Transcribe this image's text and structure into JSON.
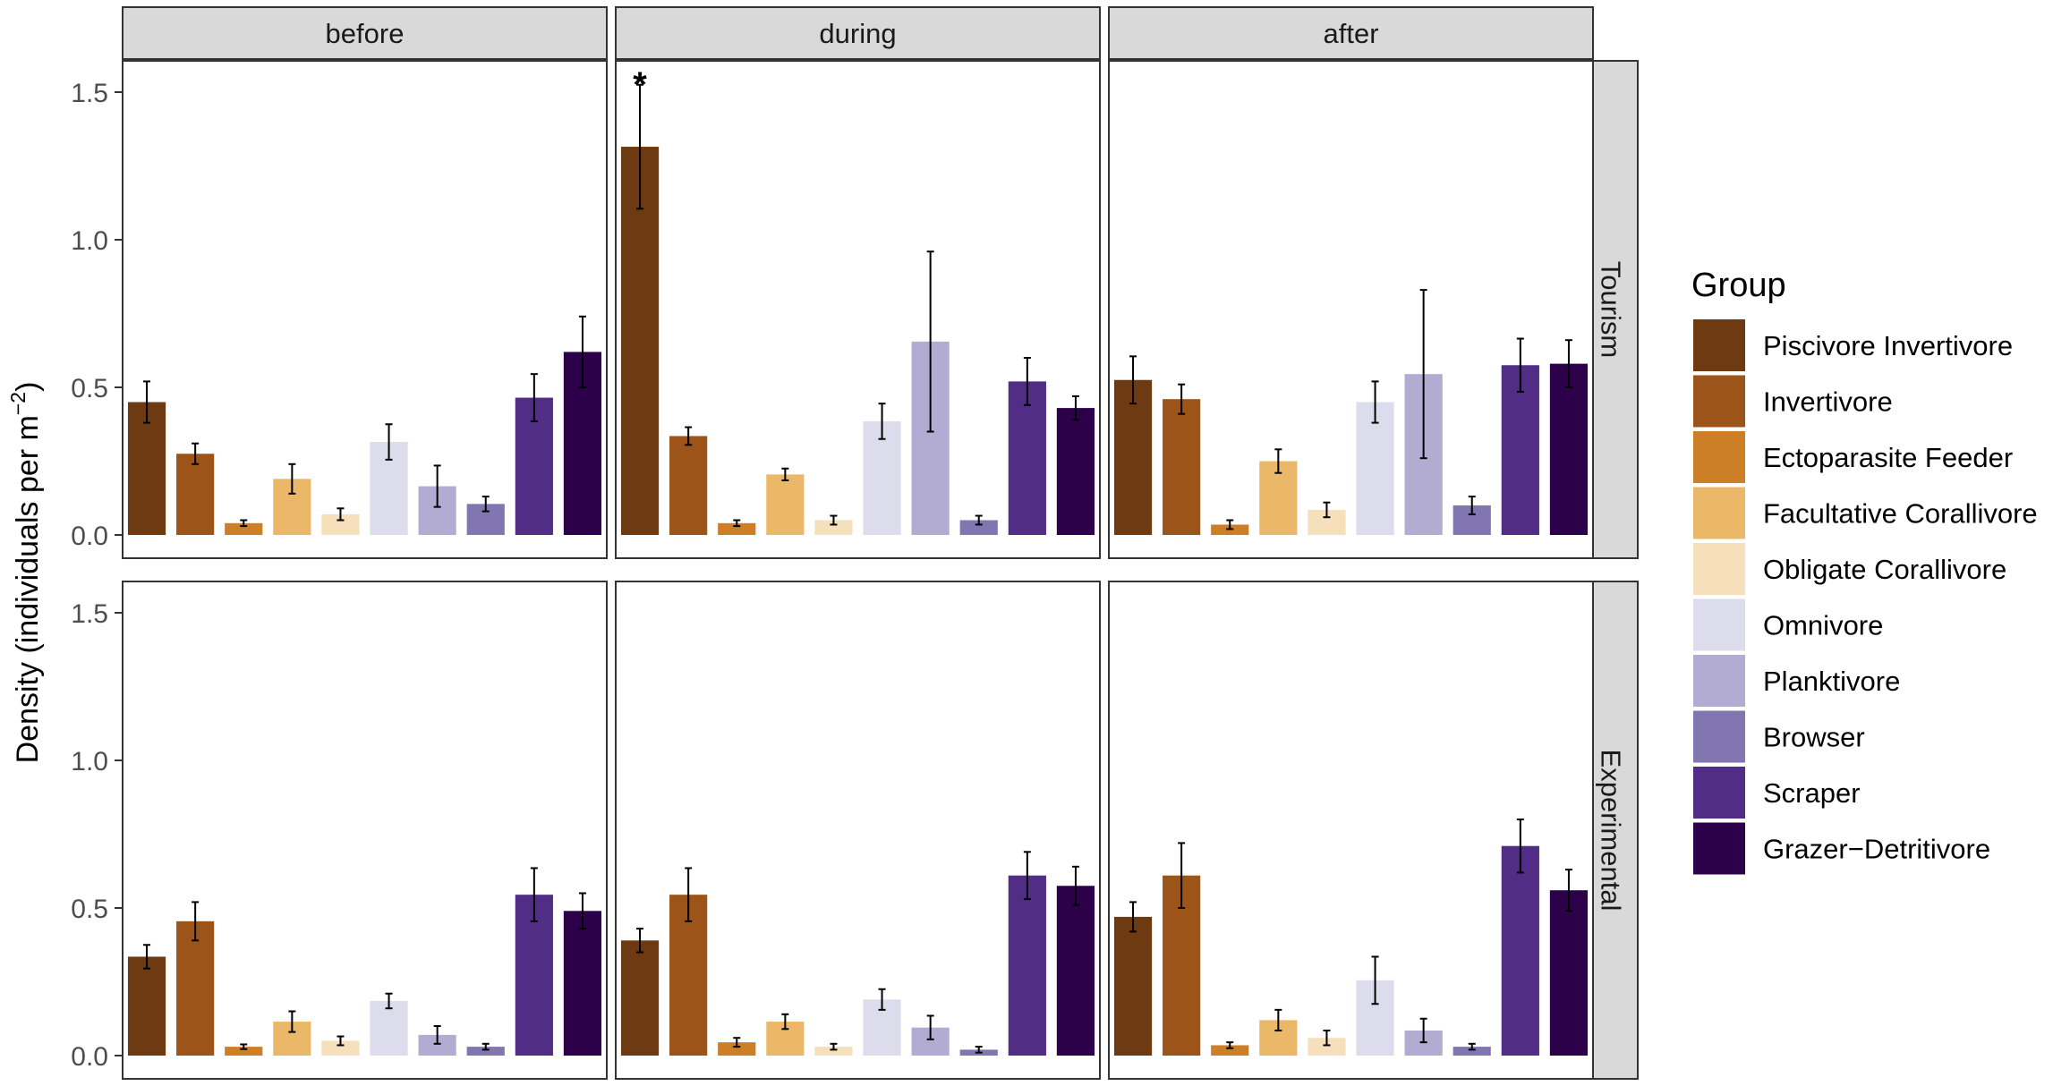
{
  "chart_data": {
    "type": "bar",
    "title": "",
    "ylabel": "Density (individuals per m",
    "ylabel_sup": "−2",
    "ylabel_close": ")",
    "xlabel": "",
    "ylim": [
      0,
      1.6
    ],
    "y_ticks": [
      0.0,
      0.5,
      1.0,
      1.5
    ],
    "y_tick_labels": [
      "0.0",
      "0.5",
      "1.0",
      "1.5"
    ],
    "facet_columns": [
      "before",
      "during",
      "after"
    ],
    "facet_rows": [
      "Tourism",
      "Experimental"
    ],
    "legend": {
      "title": "Group",
      "position": "right",
      "entries": [
        {
          "name": "Piscivore Invertivore",
          "color": "#6d3a12"
        },
        {
          "name": "Invertivore",
          "color": "#9c5418"
        },
        {
          "name": "Ectoparasite Feeder",
          "color": "#cd7f27"
        },
        {
          "name": "Facultative Corallivore",
          "color": "#ebb86a"
        },
        {
          "name": "Obligate Corallivore",
          "color": "#f6dfbb"
        },
        {
          "name": "Omnivore",
          "color": "#dcdcec"
        },
        {
          "name": "Planktivore",
          "color": "#b3acd2"
        },
        {
          "name": "Browser",
          "color": "#8176b0"
        },
        {
          "name": "Scraper",
          "color": "#512d85"
        },
        {
          "name": "Grazer−Detritivore",
          "color": "#2d004a"
        }
      ]
    },
    "panels": [
      {
        "row": "Tourism",
        "col": "before",
        "values": [
          0.45,
          0.275,
          0.04,
          0.19,
          0.07,
          0.315,
          0.165,
          0.105,
          0.465,
          0.62
        ],
        "errors": [
          0.07,
          0.035,
          0.01,
          0.05,
          0.02,
          0.06,
          0.07,
          0.025,
          0.08,
          0.12
        ],
        "annotation": ""
      },
      {
        "row": "Tourism",
        "col": "during",
        "values": [
          1.315,
          0.335,
          0.04,
          0.205,
          0.05,
          0.385,
          0.655,
          0.05,
          0.52,
          0.43
        ],
        "errors": [
          0.21,
          0.03,
          0.01,
          0.02,
          0.015,
          0.06,
          0.305,
          0.015,
          0.08,
          0.04
        ],
        "annotation": "*"
      },
      {
        "row": "Tourism",
        "col": "after",
        "values": [
          0.525,
          0.46,
          0.035,
          0.25,
          0.085,
          0.45,
          0.545,
          0.1,
          0.575,
          0.58
        ],
        "errors": [
          0.08,
          0.05,
          0.015,
          0.04,
          0.025,
          0.07,
          0.285,
          0.03,
          0.09,
          0.08
        ],
        "annotation": ""
      },
      {
        "row": "Experimental",
        "col": "before",
        "values": [
          0.335,
          0.455,
          0.03,
          0.115,
          0.05,
          0.185,
          0.07,
          0.03,
          0.545,
          0.49
        ],
        "errors": [
          0.04,
          0.065,
          0.008,
          0.035,
          0.015,
          0.025,
          0.03,
          0.01,
          0.09,
          0.06
        ],
        "annotation": ""
      },
      {
        "row": "Experimental",
        "col": "during",
        "values": [
          0.39,
          0.545,
          0.045,
          0.115,
          0.03,
          0.19,
          0.095,
          0.02,
          0.61,
          0.575
        ],
        "errors": [
          0.04,
          0.09,
          0.015,
          0.025,
          0.01,
          0.035,
          0.04,
          0.01,
          0.08,
          0.065
        ],
        "annotation": ""
      },
      {
        "row": "Experimental",
        "col": "after",
        "values": [
          0.47,
          0.61,
          0.035,
          0.12,
          0.06,
          0.255,
          0.085,
          0.03,
          0.71,
          0.56
        ],
        "errors": [
          0.05,
          0.11,
          0.01,
          0.035,
          0.025,
          0.08,
          0.04,
          0.01,
          0.09,
          0.07
        ],
        "annotation": ""
      }
    ]
  }
}
